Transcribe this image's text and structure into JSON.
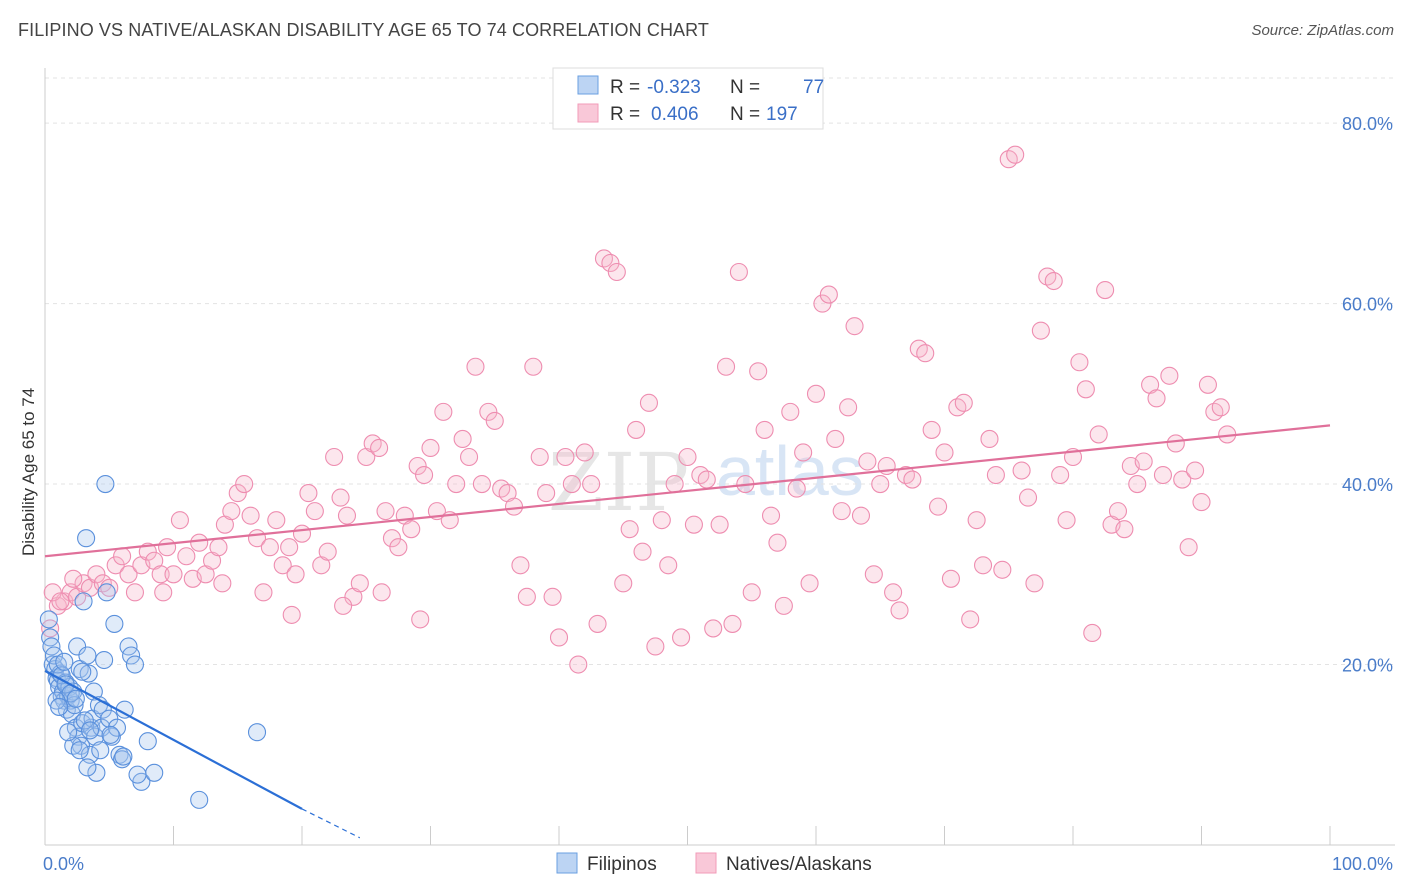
{
  "title": "FILIPINO VS NATIVE/ALASKAN DISABILITY AGE 65 TO 74 CORRELATION CHART",
  "source": "Source: ZipAtlas.com",
  "watermark": {
    "zip": "ZIP",
    "atlas": "atlas"
  },
  "colors": {
    "blue": "#6a9fe0",
    "blue_line": "#2b6fd6",
    "pink": "#f29bb8",
    "pink_line": "#e0709a",
    "tick": "#4a7cc9"
  },
  "legend": {
    "rows": [
      {
        "r_label": "R =",
        "r_value": "-0.323",
        "n_label": "N =",
        "n_value": "77",
        "color": "#6a9fe0"
      },
      {
        "r_label": "R =",
        "r_value": "0.406",
        "n_label": "N =",
        "n_value": "197",
        "color": "#f29bb8"
      }
    ]
  },
  "bottom_legend": [
    "Filipinos",
    "Natives/Alaskans"
  ],
  "chart_data": {
    "type": "scatter",
    "title": "FILIPINO VS NATIVE/ALASKAN DISABILITY AGE 65 TO 74 CORRELATION CHART",
    "xlabel": "",
    "ylabel": "Disability Age 65 to 74",
    "xlim": [
      0,
      100
    ],
    "ylim": [
      0,
      85
    ],
    "x_tick_labels": [
      "0.0%",
      "100.0%"
    ],
    "y_ticks": [
      20,
      40,
      60,
      80
    ],
    "y_tick_labels": [
      "20.0%",
      "40.0%",
      "60.0%",
      "80.0%"
    ],
    "grid": true,
    "legend_position": "top-center",
    "series": [
      {
        "name": "Filipinos",
        "color": "#6a9fe0",
        "trend": {
          "x": [
            0,
            20
          ],
          "y": [
            19.3,
            4.0
          ],
          "dashed_to": [
            24.5,
            0.8
          ]
        },
        "points": [
          [
            0.3,
            25
          ],
          [
            0.4,
            23
          ],
          [
            0.5,
            22
          ],
          [
            0.6,
            20
          ],
          [
            0.8,
            19.5
          ],
          [
            0.9,
            18.5
          ],
          [
            1.0,
            18.2
          ],
          [
            1.1,
            17.5
          ],
          [
            1.2,
            19
          ],
          [
            1.3,
            16.5
          ],
          [
            1.4,
            17
          ],
          [
            1.5,
            16
          ],
          [
            1.6,
            18
          ],
          [
            1.7,
            15
          ],
          [
            1.8,
            16.5
          ],
          [
            1.9,
            17.5
          ],
          [
            2.0,
            16
          ],
          [
            2.1,
            14.5
          ],
          [
            2.2,
            17
          ],
          [
            2.3,
            15.5
          ],
          [
            2.4,
            13
          ],
          [
            2.5,
            22
          ],
          [
            2.6,
            12
          ],
          [
            2.7,
            19.5
          ],
          [
            2.8,
            11
          ],
          [
            2.9,
            13.5
          ],
          [
            3.0,
            27
          ],
          [
            3.2,
            34
          ],
          [
            3.3,
            21
          ],
          [
            3.4,
            19
          ],
          [
            3.5,
            10
          ],
          [
            3.6,
            13
          ],
          [
            3.7,
            14
          ],
          [
            3.8,
            17
          ],
          [
            3.9,
            12
          ],
          [
            4.0,
            8
          ],
          [
            4.2,
            15.5
          ],
          [
            4.3,
            10.5
          ],
          [
            4.4,
            13
          ],
          [
            4.5,
            15
          ],
          [
            4.6,
            20.5
          ],
          [
            4.8,
            28
          ],
          [
            5.0,
            14
          ],
          [
            5.2,
            12
          ],
          [
            5.4,
            24.5
          ],
          [
            5.6,
            13
          ],
          [
            5.8,
            10
          ],
          [
            6.0,
            9.5
          ],
          [
            6.2,
            15
          ],
          [
            6.5,
            22
          ],
          [
            6.7,
            21
          ],
          [
            7.0,
            20
          ],
          [
            7.5,
            7
          ],
          [
            8.0,
            11.5
          ],
          [
            8.5,
            8
          ],
          [
            4.7,
            40
          ],
          [
            12,
            5
          ],
          [
            16.5,
            12.5
          ],
          [
            0.7,
            21
          ],
          [
            1.0,
            20
          ],
          [
            1.3,
            18.8
          ],
          [
            1.6,
            17.8
          ],
          [
            2.0,
            16.8
          ],
          [
            2.4,
            16.2
          ],
          [
            3.1,
            13.8
          ],
          [
            3.5,
            12.7
          ],
          [
            2.2,
            11
          ],
          [
            1.8,
            12.5
          ],
          [
            0.9,
            16
          ],
          [
            1.1,
            15.3
          ],
          [
            2.7,
            10.5
          ],
          [
            3.3,
            8.6
          ],
          [
            5.1,
            12.2
          ],
          [
            6.1,
            9.8
          ],
          [
            7.2,
            7.8
          ],
          [
            1.5,
            20.3
          ],
          [
            2.9,
            19.2
          ]
        ]
      },
      {
        "name": "Natives/Alaskans",
        "color": "#f29bb8",
        "trend": {
          "x": [
            0,
            100
          ],
          "y": [
            32.0,
            46.5
          ]
        },
        "points": [
          [
            0.4,
            24
          ],
          [
            1.0,
            26.5
          ],
          [
            1.5,
            27
          ],
          [
            2.0,
            28
          ],
          [
            2.5,
            27.5
          ],
          [
            3.0,
            29
          ],
          [
            3.5,
            28.5
          ],
          [
            4.0,
            30
          ],
          [
            4.5,
            29
          ],
          [
            5.0,
            28.5
          ],
          [
            5.5,
            31
          ],
          [
            6.0,
            32
          ],
          [
            6.5,
            30
          ],
          [
            7.0,
            28
          ],
          [
            7.5,
            31
          ],
          [
            8.0,
            32.5
          ],
          [
            8.5,
            31.5
          ],
          [
            9.0,
            30
          ],
          [
            9.5,
            33
          ],
          [
            10.0,
            30
          ],
          [
            10.5,
            36
          ],
          [
            11.0,
            32
          ],
          [
            11.5,
            29.5
          ],
          [
            12.0,
            33.5
          ],
          [
            12.5,
            30
          ],
          [
            13.0,
            31.5
          ],
          [
            13.5,
            33
          ],
          [
            14.0,
            35.5
          ],
          [
            14.5,
            37
          ],
          [
            15.0,
            39
          ],
          [
            15.5,
            40
          ],
          [
            16.0,
            36.5
          ],
          [
            16.5,
            34
          ],
          [
            17.0,
            28
          ],
          [
            17.5,
            33
          ],
          [
            18.0,
            36
          ],
          [
            18.5,
            31
          ],
          [
            19.0,
            33
          ],
          [
            19.5,
            30
          ],
          [
            20.0,
            34.5
          ],
          [
            20.5,
            39
          ],
          [
            21.0,
            37
          ],
          [
            21.5,
            31
          ],
          [
            22.0,
            32.5
          ],
          [
            22.5,
            43
          ],
          [
            23.0,
            38.5
          ],
          [
            23.5,
            36.5
          ],
          [
            24.0,
            27.5
          ],
          [
            24.5,
            29
          ],
          [
            25.0,
            43
          ],
          [
            25.5,
            44.5
          ],
          [
            26.0,
            44
          ],
          [
            26.5,
            37
          ],
          [
            27.0,
            34
          ],
          [
            27.5,
            33
          ],
          [
            28.0,
            36.5
          ],
          [
            28.5,
            35
          ],
          [
            29.0,
            42
          ],
          [
            29.5,
            41
          ],
          [
            30.0,
            44
          ],
          [
            30.5,
            37
          ],
          [
            31.0,
            48
          ],
          [
            31.5,
            36
          ],
          [
            32.0,
            40
          ],
          [
            32.5,
            45
          ],
          [
            33.0,
            43
          ],
          [
            33.5,
            53
          ],
          [
            34.0,
            40
          ],
          [
            34.5,
            48
          ],
          [
            35.0,
            47
          ],
          [
            35.5,
            39.5
          ],
          [
            36.0,
            39
          ],
          [
            36.5,
            37.5
          ],
          [
            37.0,
            31
          ],
          [
            37.5,
            27.5
          ],
          [
            38.0,
            53
          ],
          [
            38.5,
            43
          ],
          [
            39.0,
            39
          ],
          [
            39.5,
            27.5
          ],
          [
            40.0,
            23
          ],
          [
            40.5,
            43
          ],
          [
            41.0,
            40
          ],
          [
            41.5,
            20
          ],
          [
            42.0,
            43.5
          ],
          [
            42.5,
            40
          ],
          [
            43.0,
            24.5
          ],
          [
            43.5,
            65
          ],
          [
            44.0,
            64.5
          ],
          [
            44.5,
            63.5
          ],
          [
            45.0,
            29
          ],
          [
            45.5,
            35
          ],
          [
            46.0,
            46
          ],
          [
            46.5,
            32.5
          ],
          [
            47.0,
            49
          ],
          [
            47.5,
            22
          ],
          [
            48.0,
            36
          ],
          [
            48.5,
            31
          ],
          [
            49.0,
            40
          ],
          [
            49.5,
            23
          ],
          [
            50.0,
            43
          ],
          [
            50.5,
            35.5
          ],
          [
            51.0,
            41
          ],
          [
            51.5,
            40.5
          ],
          [
            52.0,
            24
          ],
          [
            52.5,
            35.5
          ],
          [
            53.0,
            53
          ],
          [
            53.5,
            24.5
          ],
          [
            54.0,
            63.5
          ],
          [
            54.5,
            40
          ],
          [
            55.0,
            28
          ],
          [
            55.5,
            52.5
          ],
          [
            56.0,
            46
          ],
          [
            56.5,
            36.5
          ],
          [
            57.0,
            33.5
          ],
          [
            57.5,
            26.5
          ],
          [
            58.0,
            48
          ],
          [
            58.5,
            39.5
          ],
          [
            59.0,
            43.5
          ],
          [
            59.5,
            29
          ],
          [
            60.0,
            50
          ],
          [
            60.5,
            60
          ],
          [
            61.0,
            61
          ],
          [
            61.5,
            45
          ],
          [
            62.0,
            37
          ],
          [
            62.5,
            48.5
          ],
          [
            63.0,
            57.5
          ],
          [
            63.5,
            36.5
          ],
          [
            64.0,
            42.5
          ],
          [
            64.5,
            30
          ],
          [
            65.0,
            40
          ],
          [
            65.5,
            42
          ],
          [
            66.0,
            28
          ],
          [
            66.5,
            26
          ],
          [
            67.0,
            41
          ],
          [
            67.5,
            40.5
          ],
          [
            68.0,
            55
          ],
          [
            68.5,
            54.5
          ],
          [
            69.0,
            46
          ],
          [
            69.5,
            37.5
          ],
          [
            70.0,
            43.5
          ],
          [
            70.5,
            29.5
          ],
          [
            71.0,
            48.5
          ],
          [
            71.5,
            49
          ],
          [
            72.0,
            25
          ],
          [
            72.5,
            36
          ],
          [
            73.0,
            31
          ],
          [
            73.5,
            45
          ],
          [
            74.0,
            41
          ],
          [
            74.5,
            30.5
          ],
          [
            75.0,
            76
          ],
          [
            75.5,
            76.5
          ],
          [
            76.0,
            41.5
          ],
          [
            76.5,
            38.5
          ],
          [
            77.0,
            29
          ],
          [
            77.5,
            57
          ],
          [
            78.0,
            63
          ],
          [
            78.5,
            62.5
          ],
          [
            79.0,
            41
          ],
          [
            79.5,
            36
          ],
          [
            80.0,
            43
          ],
          [
            80.5,
            53.5
          ],
          [
            81.0,
            50.5
          ],
          [
            81.5,
            23.5
          ],
          [
            82.0,
            45.5
          ],
          [
            82.5,
            61.5
          ],
          [
            83.0,
            35.5
          ],
          [
            83.5,
            37
          ],
          [
            84.0,
            35
          ],
          [
            84.5,
            42
          ],
          [
            85.0,
            40
          ],
          [
            85.5,
            42.5
          ],
          [
            86.0,
            51
          ],
          [
            86.5,
            49.5
          ],
          [
            87.0,
            41
          ],
          [
            87.5,
            52
          ],
          [
            88.0,
            44.5
          ],
          [
            88.5,
            40.5
          ],
          [
            89.0,
            33
          ],
          [
            89.5,
            41.5
          ],
          [
            90.0,
            38
          ],
          [
            90.5,
            51
          ],
          [
            91.0,
            48
          ],
          [
            91.5,
            48.5
          ],
          [
            92.0,
            45.5
          ],
          [
            0.6,
            28
          ],
          [
            1.2,
            27
          ],
          [
            2.2,
            29.5
          ],
          [
            9.2,
            28
          ],
          [
            13.8,
            29
          ],
          [
            19.2,
            25.5
          ],
          [
            23.2,
            26.5
          ],
          [
            26.2,
            28
          ],
          [
            29.2,
            25
          ]
        ]
      }
    ]
  }
}
